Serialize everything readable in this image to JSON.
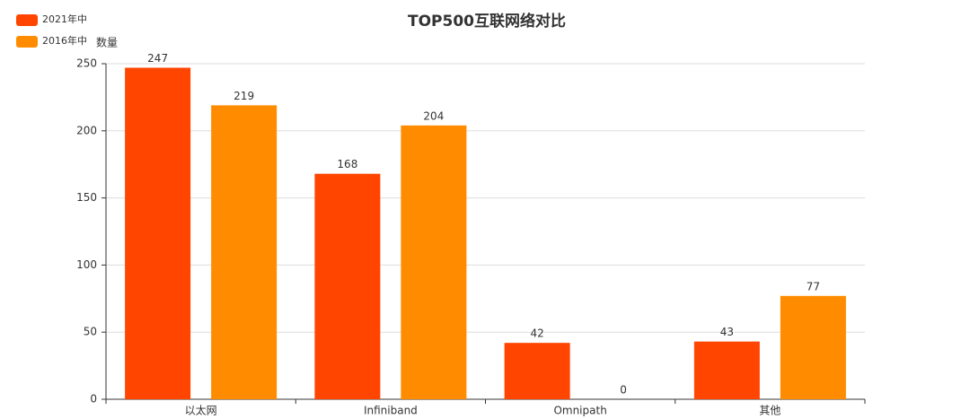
{
  "chart_data": {
    "type": "bar",
    "title": "TOP500互联网络对比",
    "y_label": "数量",
    "categories": [
      "以太网",
      "Infiniband",
      "Omnipath",
      "其他"
    ],
    "series": [
      {
        "name": "2021年中",
        "color": "#ff4500",
        "values": [
          247,
          168,
          42,
          43
        ]
      },
      {
        "name": "2016年中",
        "color": "#ff8c00",
        "values": [
          219,
          204,
          0,
          77
        ]
      }
    ],
    "ylim": [
      0,
      250
    ],
    "yticks": [
      0,
      50,
      100,
      150,
      200,
      250
    ],
    "grid": true,
    "legend": "top-left"
  }
}
